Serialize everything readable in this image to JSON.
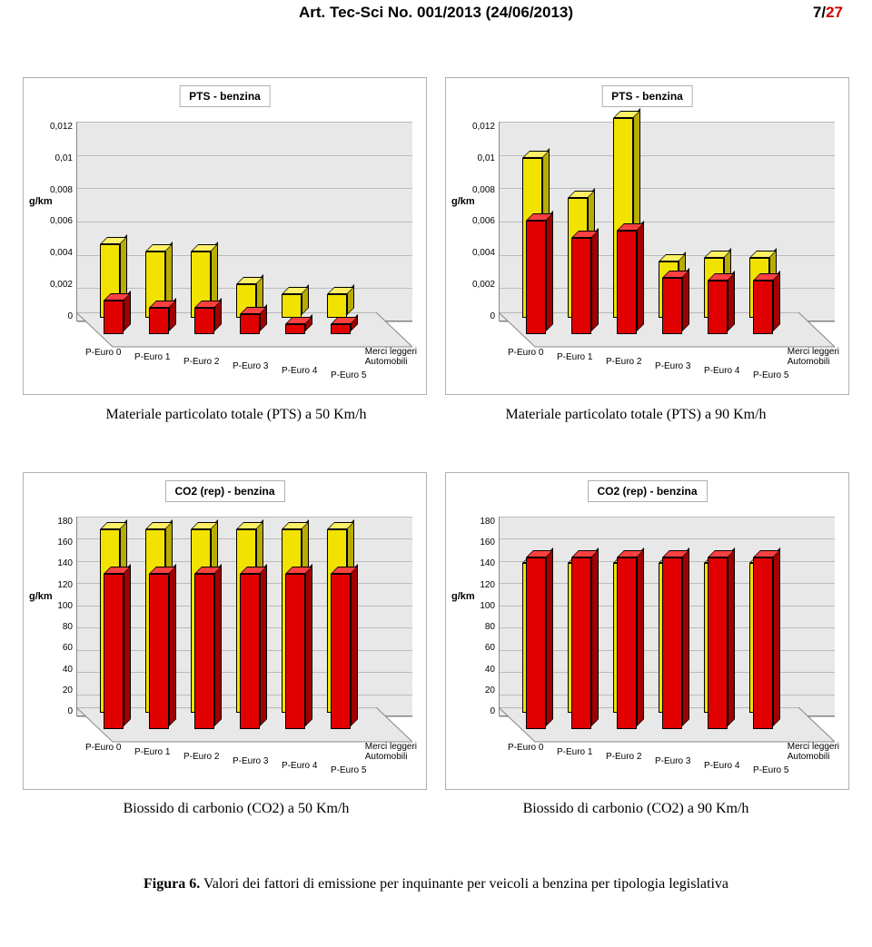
{
  "header": {
    "title": "Art. Tec-Sci No. 001/2013 (24/06/2013)",
    "page_current": "7",
    "page_total": "27"
  },
  "y_label": "g/km",
  "x_categories": [
    "P-Euro 0",
    "P-Euro 1",
    "P-Euro 2",
    "P-Euro 3",
    "P-Euro 4",
    "P-Euro 5"
  ],
  "series_names": [
    "Merci leggeri",
    "Automobili"
  ],
  "colors": {
    "series_a": "#e00000",
    "series_a_side": "#a00000",
    "series_a_top": "#ff4040",
    "series_b": "#f2e200",
    "series_b_side": "#b8ac00",
    "series_b_top": "#fff066",
    "grid_bg": "#e8e8e8",
    "grid_line": "#bbbbbb",
    "panel_border": "#b0b0b0"
  },
  "charts": [
    {
      "title": "PTS - benzina",
      "y_ticks": [
        "0,012",
        "0,01",
        "0,008",
        "0,006",
        "0,004",
        "0,002",
        "0"
      ],
      "y_max": 0.012,
      "series_a": [
        0.002,
        0.0016,
        0.0016,
        0.0012,
        0.0006,
        0.0006
      ],
      "series_b": [
        0.0044,
        0.004,
        0.004,
        0.002,
        0.0014,
        0.0014
      ]
    },
    {
      "title": "PTS - benzina",
      "y_ticks": [
        "0,012",
        "0,01",
        "0,008",
        "0,006",
        "0,004",
        "0,002",
        "0"
      ],
      "y_max": 0.012,
      "series_a": [
        0.0068,
        0.0058,
        0.0062,
        0.0034,
        0.0032,
        0.0032
      ],
      "series_b": [
        0.0096,
        0.0072,
        0.012,
        0.0034,
        0.0036,
        0.0036
      ]
    },
    {
      "title": "CO2 (rep) - benzina",
      "y_ticks": [
        "180",
        "160",
        "140",
        "120",
        "100",
        "80",
        "60",
        "40",
        "20",
        "0"
      ],
      "y_max": 180,
      "series_a": [
        140,
        140,
        140,
        140,
        140,
        140
      ],
      "series_b": [
        165,
        165,
        165,
        165,
        165,
        165
      ]
    },
    {
      "title": "CO2 (rep) - benzina",
      "y_ticks": [
        "180",
        "160",
        "140",
        "120",
        "100",
        "80",
        "60",
        "40",
        "20",
        "0"
      ],
      "y_max": 180,
      "series_a": [
        155,
        155,
        155,
        155,
        155,
        155
      ],
      "series_b": [
        135,
        135,
        135,
        135,
        135,
        135
      ]
    }
  ],
  "captions": {
    "top_left": "Materiale particolato totale (PTS) a 50 Km/h",
    "top_right": "Materiale particolato totale (PTS) a 90 Km/h",
    "bot_left": "Biossido di carbonio (CO2) a 50 Km/h",
    "bot_right": "Biossido di carbonio (CO2) a 90 Km/h"
  },
  "figure_caption_bold": "Figura 6.",
  "figure_caption_rest": " Valori dei fattori di emissione per inquinante per veicoli a benzina per tipologia legislativa"
}
